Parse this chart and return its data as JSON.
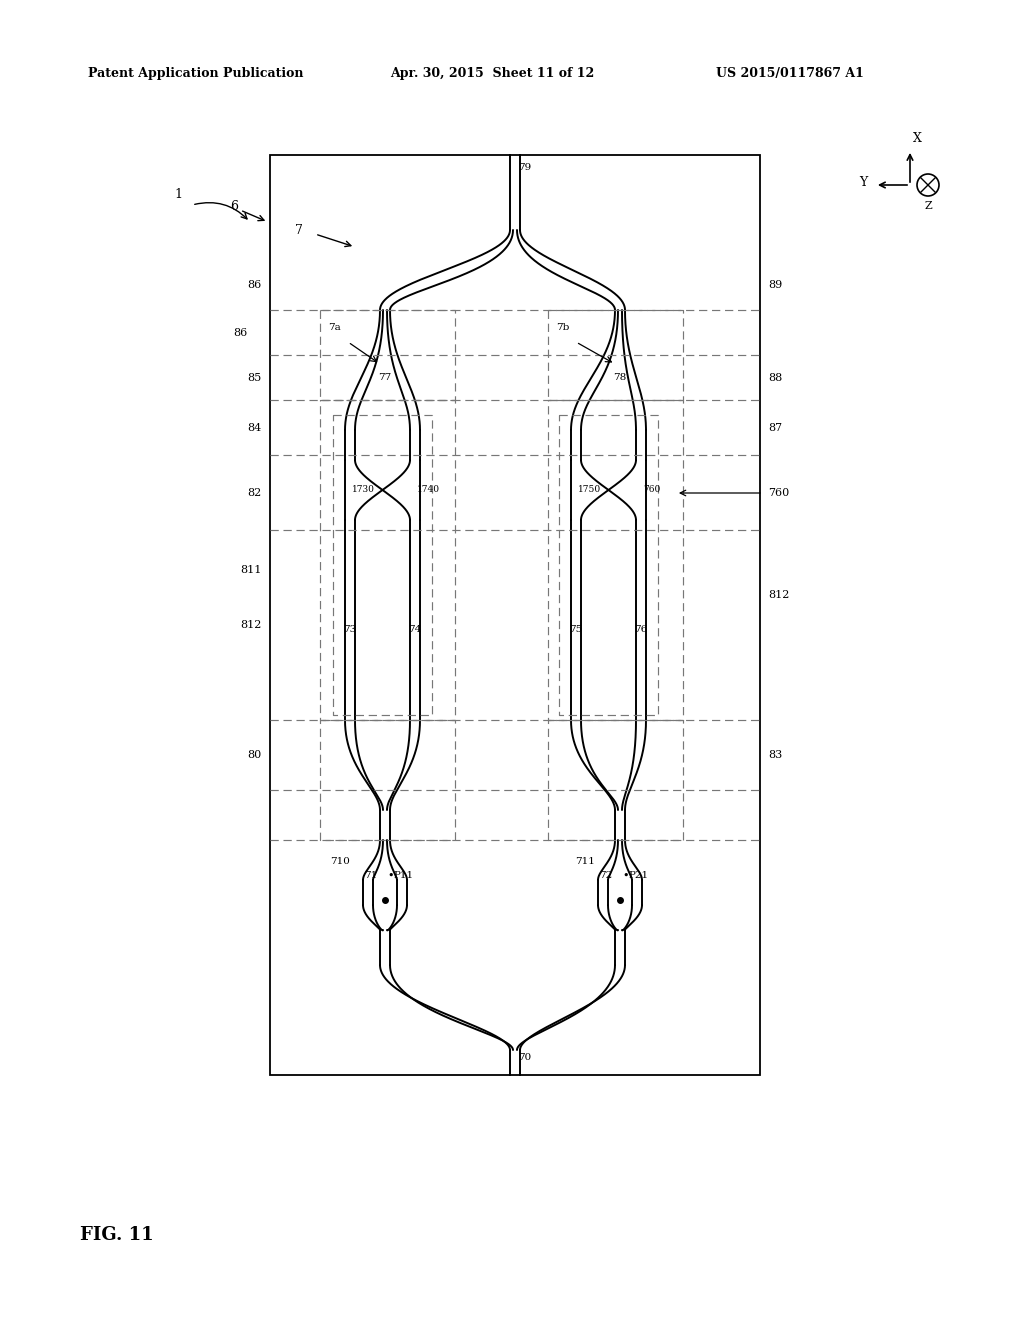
{
  "title_left": "Patent Application Publication",
  "title_mid": "Apr. 30, 2015  Sheet 11 of 12",
  "title_right": "US 2015/0117867 A1",
  "fig_label": "FIG. 11",
  "bg_color": "#ffffff",
  "line_color": "#000000",
  "dashed_color": "#777777"
}
